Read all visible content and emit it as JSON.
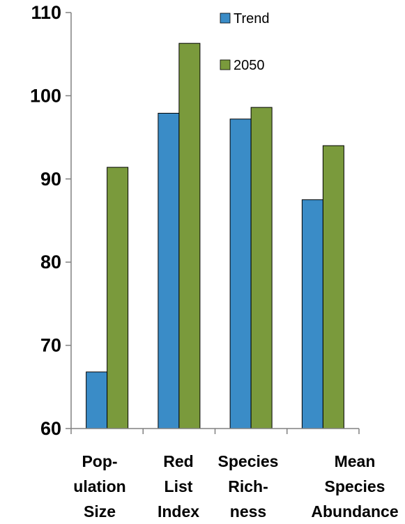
{
  "chart_data": {
    "type": "bar",
    "categories": [
      [
        "Pop-",
        "ulation",
        "Size"
      ],
      [
        "Red",
        "List",
        "Index"
      ],
      [
        "Species",
        "Rich-",
        "ness"
      ],
      [
        "Mean",
        "Species",
        "Abundance"
      ]
    ],
    "series": [
      {
        "name": "Trend",
        "values": [
          66.8,
          97.9,
          97.2,
          87.5
        ],
        "color": "#3a8cc7"
      },
      {
        "name": "2050",
        "values": [
          91.4,
          106.3,
          98.6,
          94.0
        ],
        "color": "#7a9a3c"
      }
    ],
    "ylim": [
      60,
      110
    ],
    "yticks": [
      60,
      70,
      80,
      90,
      100,
      110
    ],
    "title": "",
    "xlabel": "",
    "ylabel": "",
    "grid": false,
    "legend_position": "top-right"
  }
}
